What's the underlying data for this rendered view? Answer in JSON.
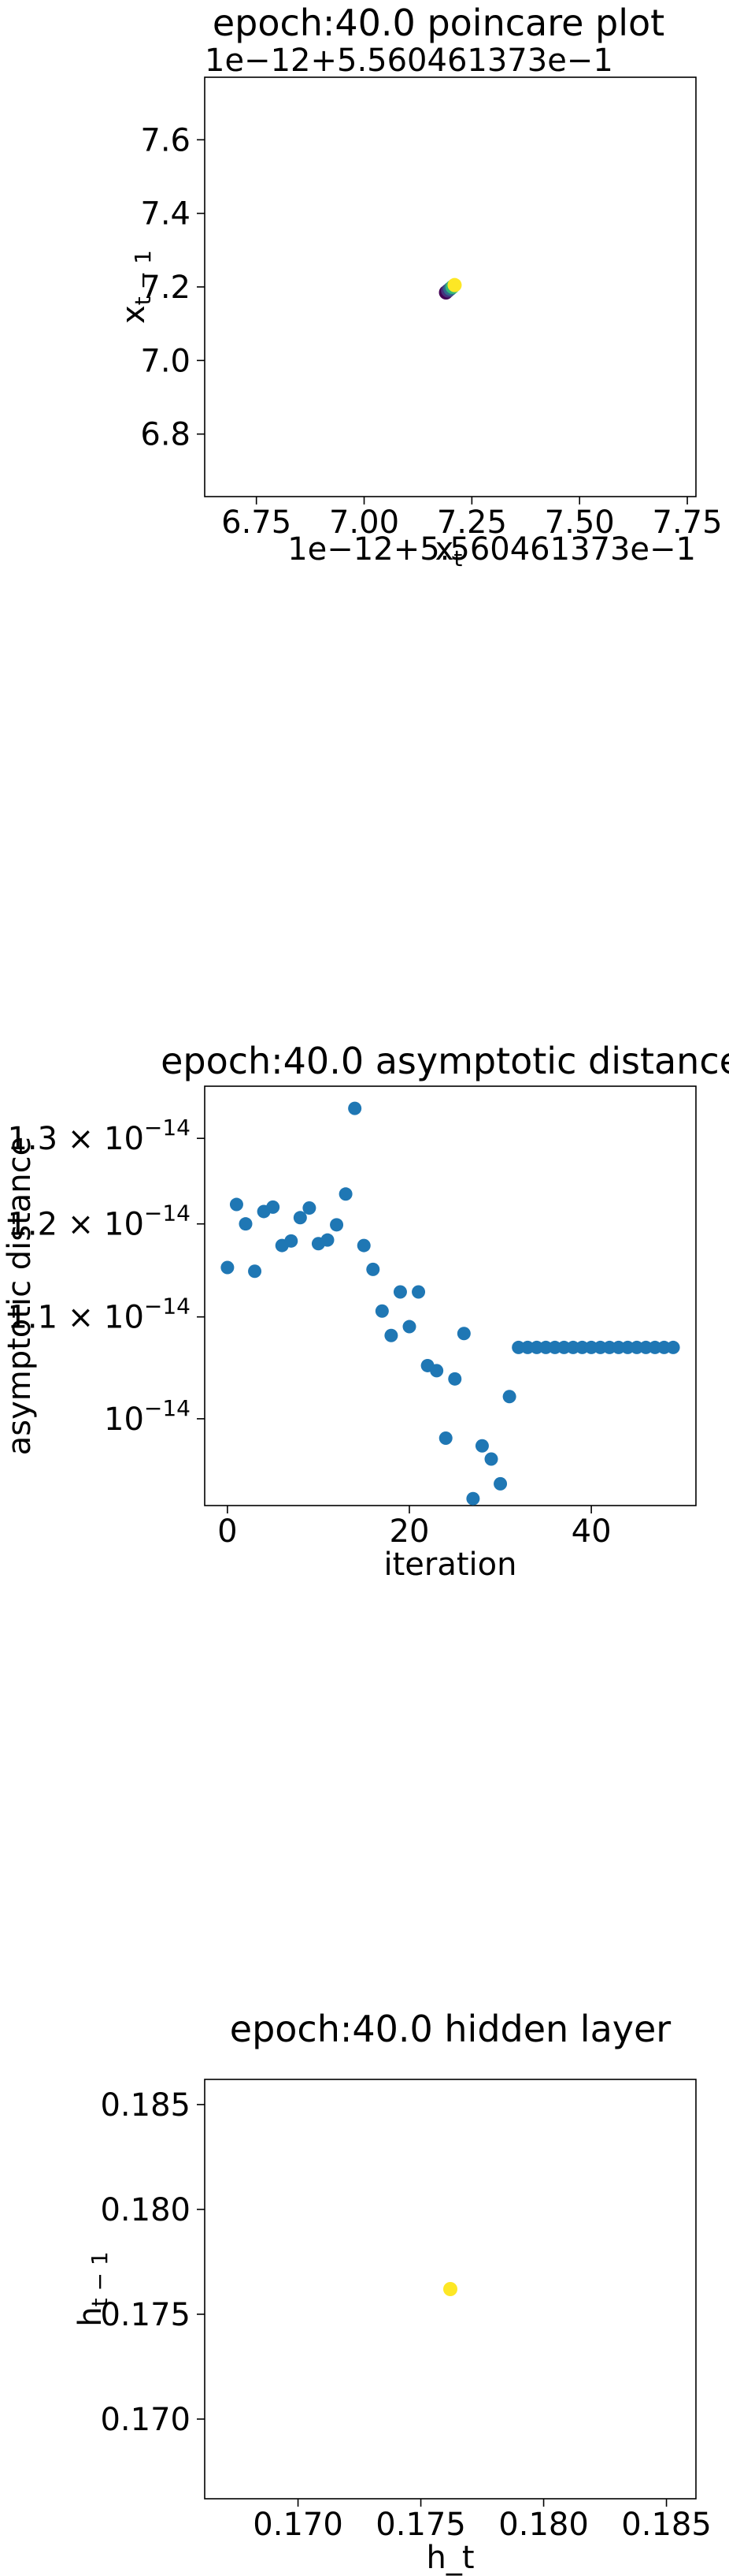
{
  "chart_data": [
    {
      "type": "scatter",
      "title": "epoch:40.0 poincare plot",
      "xlabel": "x_t",
      "ylabel": "x_{t-1}",
      "x_offset_text": "1e−12+5.560461373e−1",
      "y_offset_text": "1e−12+5.560461373e−1",
      "xlim": [
        6.63,
        7.77
      ],
      "ylim": [
        6.63,
        7.77
      ],
      "x_ticks": [
        6.75,
        7.0,
        7.25,
        7.5,
        7.75
      ],
      "x_tick_labels": [
        "6.75",
        "7.00",
        "7.25",
        "7.50",
        "7.75"
      ],
      "y_ticks": [
        6.8,
        7.0,
        7.2,
        7.4,
        7.6
      ],
      "y_tick_labels": [
        "6.8",
        "7.0",
        "7.2",
        "7.4",
        "7.6"
      ],
      "points": [
        {
          "x": 7.19,
          "y": 7.185,
          "color": "#440154"
        },
        {
          "x": 7.195,
          "y": 7.19,
          "color": "#46327e"
        },
        {
          "x": 7.2,
          "y": 7.195,
          "color": "#31688e"
        },
        {
          "x": 7.205,
          "y": 7.2,
          "color": "#35b779"
        },
        {
          "x": 7.21,
          "y": 7.205,
          "color": "#fde725"
        }
      ]
    },
    {
      "type": "scatter",
      "title": "epoch:40.0 asymptotic distance",
      "xlabel": "iteration",
      "ylabel": "asymptotic distance",
      "y_scale": "log",
      "xlim": [
        -2.5,
        51.5
      ],
      "ylim": [
        9.22e-15,
        1.365e-14
      ],
      "x_ticks": [
        0,
        20,
        40
      ],
      "x_tick_labels": [
        "0",
        "20",
        "40"
      ],
      "y_ticks": [
        1e-14,
        1.1e-14,
        1.2e-14,
        1.3e-14
      ],
      "y_tick_labels": [
        {
          "mant": "",
          "exp": "−14"
        },
        {
          "mant": "1.1 × ",
          "exp": "−14"
        },
        {
          "mant": "1.2 × ",
          "exp": "−14"
        },
        {
          "mant": "1.3 × ",
          "exp": "−14"
        }
      ],
      "y_tick_base": "10",
      "color": "#1f77b4",
      "x": [
        0,
        1,
        2,
        3,
        4,
        5,
        6,
        7,
        8,
        9,
        10,
        11,
        12,
        13,
        14,
        15,
        16,
        17,
        18,
        19,
        20,
        21,
        22,
        23,
        24,
        25,
        26,
        27,
        28,
        29,
        30,
        31,
        32,
        33,
        34,
        35,
        36,
        37,
        38,
        39,
        40,
        41,
        42,
        43,
        44,
        45,
        46,
        47,
        48,
        49
      ],
      "y": [
        1.152e-14,
        1.222e-14,
        1.2e-14,
        1.148e-14,
        1.214e-14,
        1.219e-14,
        1.176e-14,
        1.181e-14,
        1.207e-14,
        1.218e-14,
        1.178e-14,
        1.182e-14,
        1.199e-14,
        1.234e-14,
        1.337e-14,
        1.176e-14,
        1.15e-14,
        1.106e-14,
        1.081e-14,
        1.126e-14,
        1.09e-14,
        1.126e-14,
        1.051e-14,
        1.046e-14,
        9.82e-15,
        1.038e-14,
        1.083e-14,
        9.28e-15,
        9.75e-15,
        9.63e-15,
        9.41e-15,
        1.021e-14,
        1.069e-14,
        1.069e-14,
        1.069e-14,
        1.069e-14,
        1.069e-14,
        1.069e-14,
        1.069e-14,
        1.069e-14,
        1.069e-14,
        1.069e-14,
        1.069e-14,
        1.069e-14,
        1.069e-14,
        1.069e-14,
        1.069e-14,
        1.069e-14,
        1.069e-14,
        1.069e-14
      ]
    },
    {
      "type": "scatter",
      "title": "epoch:40.0 hidden layer",
      "xlabel": "h_t",
      "ylabel": "h_{t-1}",
      "xlim": [
        0.1662,
        0.1862
      ],
      "ylim": [
        0.1662,
        0.1862
      ],
      "x_ticks": [
        0.17,
        0.175,
        0.18,
        0.185
      ],
      "x_tick_labels": [
        "0.170",
        "0.175",
        "0.180",
        "0.185"
      ],
      "y_ticks": [
        0.17,
        0.175,
        0.18,
        0.185
      ],
      "y_tick_labels": [
        "0.170",
        "0.175",
        "0.180",
        "0.185"
      ],
      "points": [
        {
          "x": 0.1762,
          "y": 0.1762,
          "color": "#fde725"
        }
      ]
    }
  ]
}
